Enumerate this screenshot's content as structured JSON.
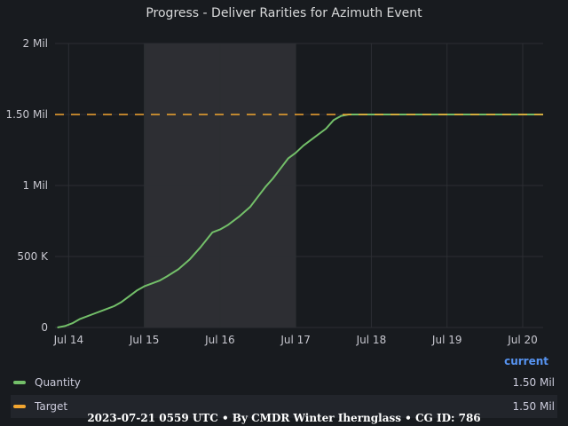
{
  "colors": {
    "background": "#181b1f",
    "grid": "#2c2e33",
    "highlight_band": "#34363b",
    "quantity": "#73bf69",
    "target": "#f2a530",
    "legend_header": "#5794f2"
  },
  "legend": {
    "header": "current",
    "items": [
      {
        "name": "Quantity",
        "value": "1.50 Mil",
        "color": "#73bf69",
        "icon": "line-swatch"
      },
      {
        "name": "Target",
        "value": "1.50 Mil",
        "color": "#f2a530",
        "icon": "line-swatch"
      }
    ]
  },
  "footer": "2023-07-21 0559 UTC • By CMDR Winter Ihernglass • CG ID: 786",
  "chart_data": {
    "type": "line",
    "title": "Progress - Deliver Rarities for Azimuth Event",
    "xlabel": "",
    "ylabel": "",
    "x_unit": "days (Jul)",
    "xlim": [
      13.82,
      20.27
    ],
    "ylim": [
      0,
      2000000
    ],
    "y_ticks": [
      {
        "value": 0,
        "label": "0"
      },
      {
        "value": 500000,
        "label": "500 K"
      },
      {
        "value": 1000000,
        "label": "1 Mil"
      },
      {
        "value": 1500000,
        "label": "1.50 Mil"
      },
      {
        "value": 2000000,
        "label": "2 Mil"
      }
    ],
    "x_ticks": [
      {
        "value": 14,
        "label": "Jul 14"
      },
      {
        "value": 15,
        "label": "Jul 15"
      },
      {
        "value": 16,
        "label": "Jul 16"
      },
      {
        "value": 17,
        "label": "Jul 17"
      },
      {
        "value": 18,
        "label": "Jul 18"
      },
      {
        "value": 19,
        "label": "Jul 19"
      },
      {
        "value": 20,
        "label": "Jul 20"
      }
    ],
    "grid": true,
    "legend_position": "bottom",
    "shaded_region": [
      15.0,
      17.0
    ],
    "series": [
      {
        "name": "Quantity",
        "color": "#73bf69",
        "style": "solid",
        "x": [
          13.85,
          13.95,
          14.05,
          14.15,
          14.2,
          14.35,
          14.45,
          14.6,
          14.7,
          14.8,
          14.9,
          15.0,
          15.1,
          15.2,
          15.3,
          15.45,
          15.6,
          15.75,
          15.9,
          16.0,
          16.1,
          16.25,
          16.4,
          16.5,
          16.6,
          16.7,
          16.8,
          16.9,
          17.0,
          17.1,
          17.25,
          17.4,
          17.5,
          17.6,
          17.7,
          18.0,
          18.5,
          19.0,
          19.5,
          20.0,
          20.27
        ],
        "values": [
          0,
          10000,
          30000,
          60000,
          70000,
          100000,
          120000,
          150000,
          180000,
          220000,
          260000,
          290000,
          310000,
          330000,
          360000,
          410000,
          480000,
          570000,
          670000,
          690000,
          720000,
          780000,
          850000,
          920000,
          990000,
          1050000,
          1120000,
          1190000,
          1230000,
          1280000,
          1340000,
          1400000,
          1460000,
          1490000,
          1500000,
          1500000,
          1500000,
          1500000,
          1500000,
          1500000,
          1500000
        ]
      },
      {
        "name": "Target",
        "color": "#f2a530",
        "style": "dashed",
        "x": [
          13.82,
          20.27
        ],
        "values": [
          1500000,
          1500000
        ]
      }
    ]
  }
}
